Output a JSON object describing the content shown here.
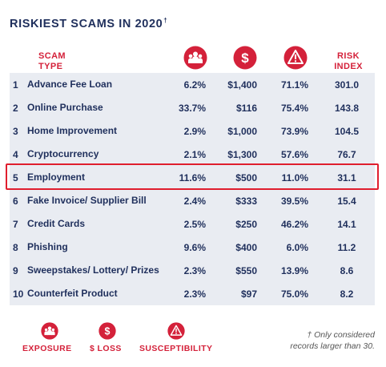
{
  "title": "RISKIEST SCAMS IN 2020",
  "title_mark": "†",
  "headers": {
    "type_line1": "SCAM",
    "type_line2": "TYPE",
    "risk_line1": "RISK",
    "risk_line2": "INDEX",
    "exposure_icon": "people-group-icon",
    "loss_icon": "dollar-icon",
    "susceptibility_icon": "warning-icon"
  },
  "colors": {
    "accent": "#d4213a",
    "navy": "#1f2f5c",
    "row_bg": "#e9ecf2",
    "highlight": "#e01e2e"
  },
  "chart_data": {
    "type": "table",
    "columns": [
      "SCAM TYPE",
      "EXPOSURE",
      "$ LOSS",
      "SUSCEPTIBILITY",
      "RISK INDEX"
    ],
    "highlighted_rank": 5,
    "rows": [
      {
        "rank": "1",
        "name": "Advance Fee Loan",
        "exposure": "6.2%",
        "loss": "$1,400",
        "susceptibility": "71.1%",
        "risk": "301.0"
      },
      {
        "rank": "2",
        "name": "Online Purchase",
        "exposure": "33.7%",
        "loss": "$116",
        "susceptibility": "75.4%",
        "risk": "143.8"
      },
      {
        "rank": "3",
        "name": "Home Improvement",
        "exposure": "2.9%",
        "loss": "$1,000",
        "susceptibility": "73.9%",
        "risk": "104.5"
      },
      {
        "rank": "4",
        "name": "Cryptocurrency",
        "exposure": "2.1%",
        "loss": "$1,300",
        "susceptibility": "57.6%",
        "risk": "76.7"
      },
      {
        "rank": "5",
        "name": "Employment",
        "exposure": "11.6%",
        "loss": "$500",
        "susceptibility": "11.0%",
        "risk": "31.1"
      },
      {
        "rank": "6",
        "name": "Fake Invoice/ Supplier Bill",
        "exposure": "2.4%",
        "loss": "$333",
        "susceptibility": "39.5%",
        "risk": "15.4"
      },
      {
        "rank": "7",
        "name": "Credit Cards",
        "exposure": "2.5%",
        "loss": "$250",
        "susceptibility": "46.2%",
        "risk": "14.1"
      },
      {
        "rank": "8",
        "name": "Phishing",
        "exposure": "9.6%",
        "loss": "$400",
        "susceptibility": "6.0%",
        "risk": "11.2"
      },
      {
        "rank": "9",
        "name": "Sweepstakes/ Lottery/ Prizes",
        "exposure": "2.3%",
        "loss": "$550",
        "susceptibility": "13.9%",
        "risk": "8.6"
      },
      {
        "rank": "10",
        "name": "Counterfeit Product",
        "exposure": "2.3%",
        "loss": "$97",
        "susceptibility": "75.0%",
        "risk": "8.2"
      }
    ]
  },
  "legend": {
    "exposure": "EXPOSURE",
    "loss": "$ LOSS",
    "susceptibility": "SUSCEPTIBILITY"
  },
  "footnote": {
    "line1": "† Only considered",
    "line2": "records larger than 30."
  }
}
